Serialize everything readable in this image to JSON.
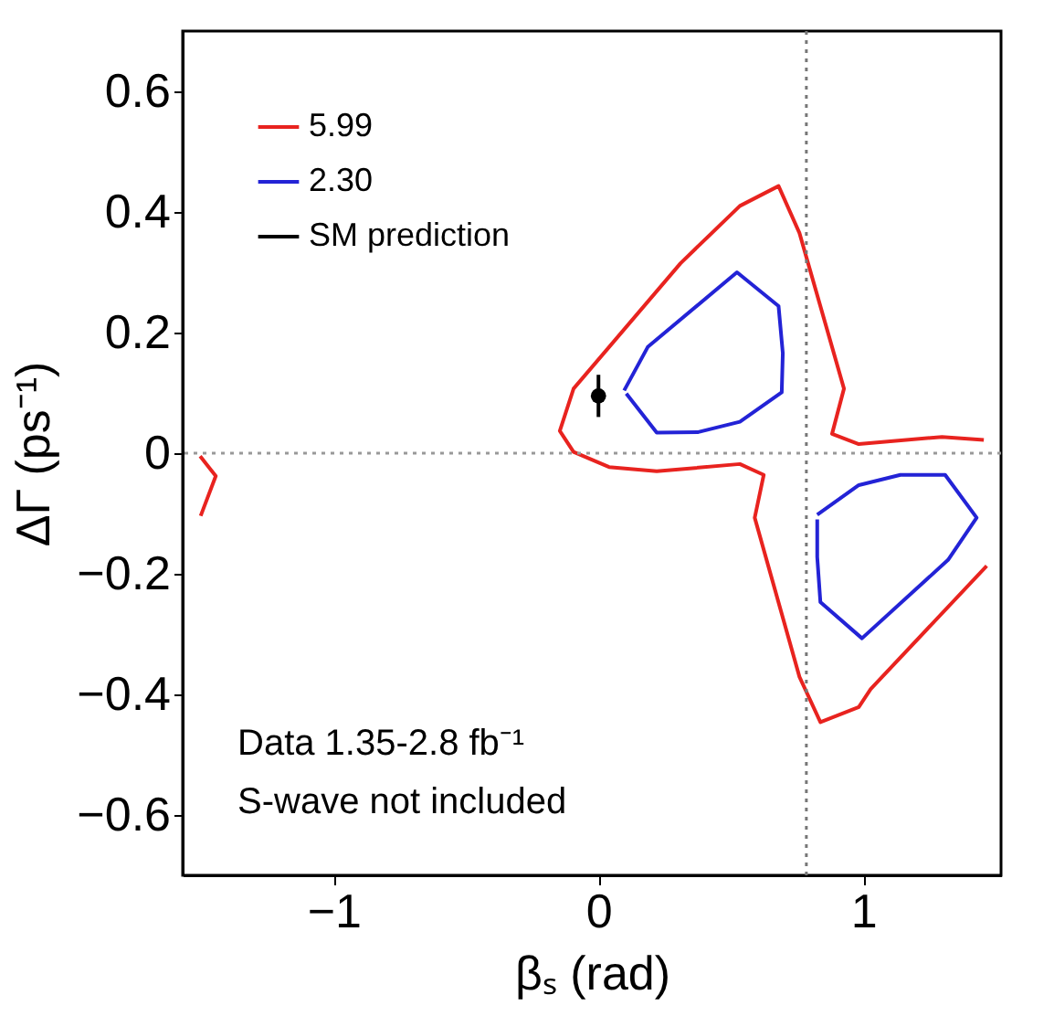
{
  "chart_data": {
    "type": "line",
    "xlabel": "βₛ (rad)",
    "ylabel": "ΔΓ (ps⁻¹)",
    "xlim": [
      -1.57,
      1.52
    ],
    "ylim": [
      -0.7,
      0.7
    ],
    "xticks": [
      -1,
      0,
      1
    ],
    "yticks": [
      -0.6,
      -0.4,
      -0.2,
      0.0,
      0.2,
      0.4,
      0.6
    ],
    "grid": false,
    "legend": "top left",
    "marker": "none",
    "line_style": "solid",
    "series": [
      {
        "name": "5.99",
        "color": "#e8231f",
        "x": [
          1.455,
          1.297,
          0.983,
          0.882,
          0.927,
          0.759,
          0.68,
          0.534,
          0.31,
          0.04,
          -0.094,
          -0.146,
          -0.094,
          0.04,
          0.22,
          0.534,
          0.624,
          0.59,
          0.759,
          0.838,
          0.983,
          1.028,
          1.466,
          null,
          -1.504,
          -1.445,
          -1.502
        ],
        "values": [
          0.022,
          0.027,
          0.015,
          0.032,
          0.107,
          0.365,
          0.443,
          0.41,
          0.315,
          0.176,
          0.107,
          0.037,
          0.002,
          -0.023,
          -0.03,
          -0.018,
          -0.036,
          -0.107,
          -0.371,
          -0.446,
          -0.421,
          -0.391,
          -0.187,
          null,
          -0.005,
          -0.038,
          -0.104
        ]
      },
      {
        "name": "2.30",
        "color": "#2323d6",
        "x": [
          0.097,
          0.186,
          0.523,
          0.68,
          0.696,
          0.692,
          0.534,
          0.377,
          0.22,
          0.105,
          null,
          0.826,
          0.983,
          1.14,
          1.309,
          1.428,
          1.32,
          0.995,
          0.838,
          0.826,
          0.826
        ],
        "values": [
          0.104,
          0.176,
          0.3,
          0.244,
          0.166,
          0.101,
          0.052,
          0.035,
          0.034,
          0.099,
          null,
          -0.102,
          -0.053,
          -0.036,
          -0.036,
          -0.107,
          -0.177,
          -0.307,
          -0.247,
          -0.172,
          -0.11
        ]
      },
      {
        "name": "SM prediction",
        "type": "scatter",
        "marker": "circle",
        "color": "#000000",
        "x": [
          0.0
        ],
        "values": [
          0.095
        ],
        "errors": [
          0.035
        ]
      }
    ],
    "ref_lines": [
      {
        "axis": "x",
        "value": 0.785,
        "color": "#777777",
        "line_style": "dotted"
      },
      {
        "axis": "y",
        "value": 0.0,
        "color": "#999999",
        "line_style": "dotted"
      }
    ],
    "annotations": [
      "Data 1.35-2.8 fb⁻¹",
      "S-wave not included"
    ]
  }
}
